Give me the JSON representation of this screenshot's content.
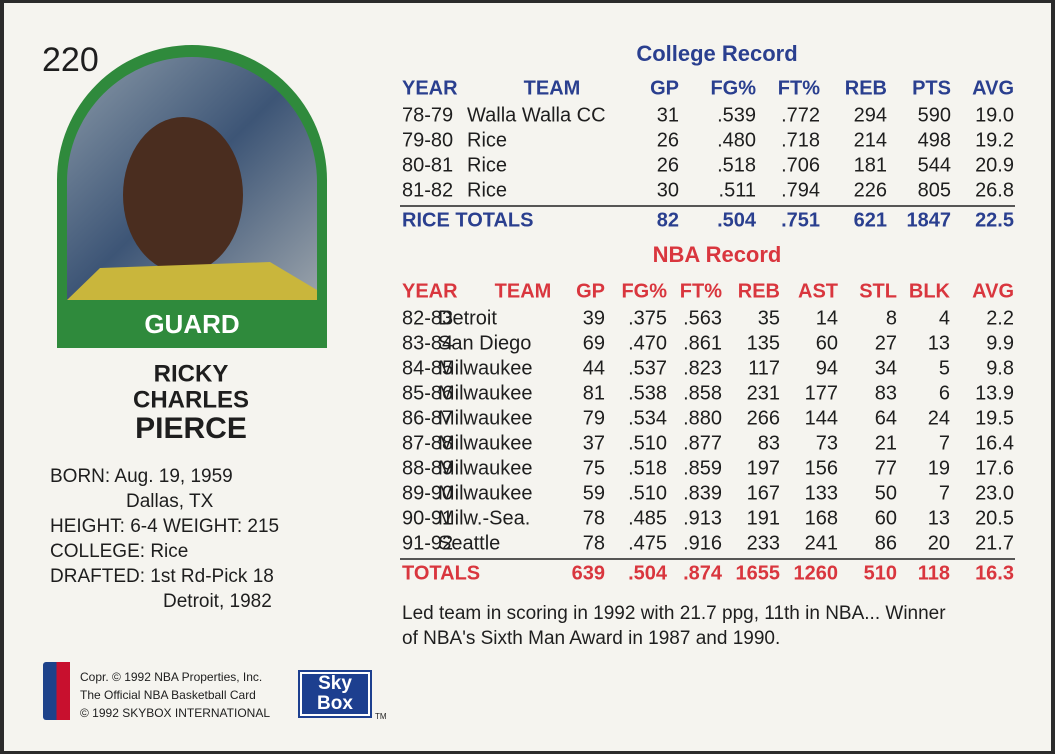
{
  "card_number": "220",
  "position": "GUARD",
  "name": [
    "RICKY",
    "CHARLES",
    "PIERCE"
  ],
  "bio": [
    "BORN: Aug. 19, 1959",
    "Dallas, TX",
    "HEIGHT: 6-4  WEIGHT: 215",
    "COLLEGE: Rice",
    "DRAFTED: 1st Rd-Pick 18",
    "Detroit, 1982"
  ],
  "college_record": {
    "title": "College Record",
    "columns": [
      "YEAR",
      "TEAM",
      "GP",
      "FG%",
      "FT%",
      "REB",
      "PTS",
      "AVG"
    ],
    "rows": [
      [
        "78-79",
        "Walla Walla CC",
        "31",
        ".539",
        ".772",
        "294",
        "590",
        "19.0"
      ],
      [
        "79-80",
        "Rice",
        "26",
        ".480",
        ".718",
        "214",
        "498",
        "19.2"
      ],
      [
        "80-81",
        "Rice",
        "26",
        ".518",
        ".706",
        "181",
        "544",
        "20.9"
      ],
      [
        "81-82",
        "Rice",
        "30",
        ".511",
        ".794",
        "226",
        "805",
        "26.8"
      ]
    ],
    "totals": [
      "RICE TOTALS",
      "82",
      ".504",
      ".751",
      "621",
      "1847",
      "22.5"
    ]
  },
  "nba_record": {
    "title": "NBA Record",
    "columns": [
      "YEAR",
      "TEAM",
      "GP",
      "FG%",
      "FT%",
      "REB",
      "AST",
      "STL",
      "BLK",
      "AVG"
    ],
    "rows": [
      [
        "82-83",
        "Detroit",
        "39",
        ".375",
        ".563",
        "35",
        "14",
        "8",
        "4",
        "2.2"
      ],
      [
        "83-84",
        "San Diego",
        "69",
        ".470",
        ".861",
        "135",
        "60",
        "27",
        "13",
        "9.9"
      ],
      [
        "84-85",
        "Milwaukee",
        "44",
        ".537",
        ".823",
        "117",
        "94",
        "34",
        "5",
        "9.8"
      ],
      [
        "85-86",
        "Milwaukee",
        "81",
        ".538",
        ".858",
        "231",
        "177",
        "83",
        "6",
        "13.9"
      ],
      [
        "86-87",
        "Milwaukee",
        "79",
        ".534",
        ".880",
        "266",
        "144",
        "64",
        "24",
        "19.5"
      ],
      [
        "87-88",
        "Milwaukee",
        "37",
        ".510",
        ".877",
        "83",
        "73",
        "21",
        "7",
        "16.4"
      ],
      [
        "88-89",
        "Milwaukee",
        "75",
        ".518",
        ".859",
        "197",
        "156",
        "77",
        "19",
        "17.6"
      ],
      [
        "89-90",
        "Milwaukee",
        "59",
        ".510",
        ".839",
        "167",
        "133",
        "50",
        "7",
        "23.0"
      ],
      [
        "90-91",
        "Milw.-Sea.",
        "78",
        ".485",
        ".913",
        "191",
        "168",
        "60",
        "13",
        "20.5"
      ],
      [
        "91-92",
        "Seattle",
        "78",
        ".475",
        ".916",
        "233",
        "241",
        "86",
        "20",
        "21.7"
      ]
    ],
    "totals": [
      "TOTALS",
      "639",
      ".504",
      ".874",
      "1655",
      "1260",
      "510",
      "118",
      "16.3"
    ]
  },
  "blurb": [
    "Led team in scoring in 1992 with 21.7 ppg, 11th in NBA... Winner",
    "of NBA's Sixth Man Award in 1987 and 1990."
  ],
  "legal": [
    "Copr. © 1992 NBA Properties, Inc.",
    "The Official NBA Basketball Card",
    "© 1992 SKYBOX INTERNATIONAL"
  ],
  "brand": [
    "Sky",
    "Box"
  ],
  "trademark": "TM"
}
